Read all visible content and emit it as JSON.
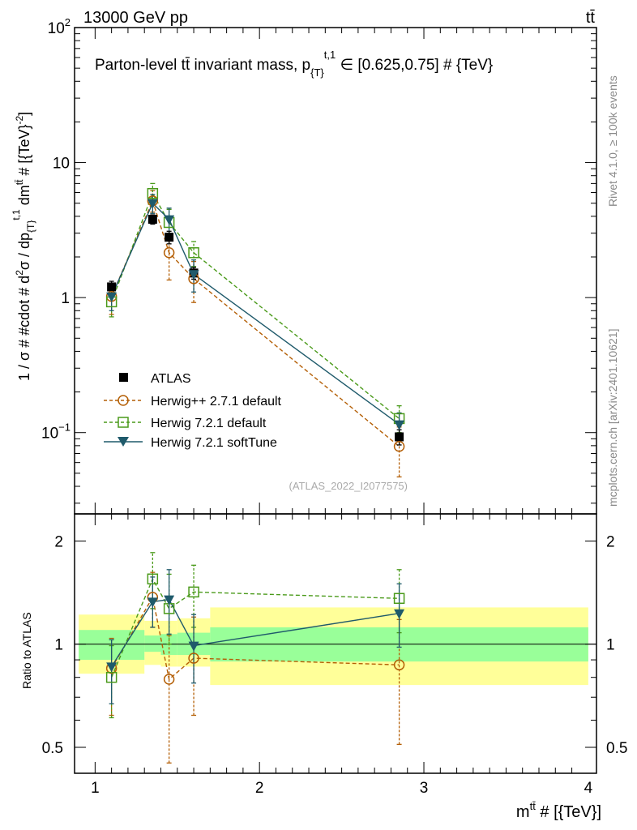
{
  "header": {
    "energy_label": "13000 GeV pp",
    "process_label": "tt̄"
  },
  "side_text": {
    "rivet": "Rivet 4.1.0, ≥ 100k events",
    "mcplots": "mcplots.cern.ch [arXiv:2401.10621]"
  },
  "chart_data": [
    {
      "type": "line",
      "panel": "main",
      "title": "Parton-level tt̄ invariant mass, p_{T}^{t,1} ∈ [0.625,0.75] # {TeV}",
      "title_parts": {
        "pre": "Parton-level tt̄ invariant mass, p",
        "sub": "{T}",
        "sup": "t,1",
        "post": " ∈ [0.625,0.75] # {TeV}"
      },
      "ylabel": "1 / σ # #cdot # d²σ / dp_{T}^{t,1} dm^{tt̄} # [{TeV}⁻²]",
      "ylabel_parts": {
        "a": "1 / σ # #cdot # d",
        "b": "2",
        "c": "σ / dp",
        "d": "{T}",
        "e": "t,1",
        "f": " dm",
        "g": "tt̄",
        "h": " # [{TeV}",
        "i": "-2",
        "j": "]"
      },
      "yscale": "log",
      "ylim": [
        0.025,
        100
      ],
      "xlim": [
        0.875,
        4.05
      ],
      "y_ticks": [
        {
          "value": 0.1,
          "base": "10",
          "exp": "−1"
        },
        {
          "value": 1,
          "base": "1",
          "exp": ""
        },
        {
          "value": 10,
          "base": "10",
          "exp": ""
        },
        {
          "value": 100,
          "base": "10",
          "exp": "2"
        }
      ],
      "watermark": "(ATLAS_2022_I2077575)",
      "legend_position": "lower-left",
      "series": [
        {
          "name": "ATLAS",
          "style": "data",
          "color": "#000000",
          "x": [
            1.1,
            1.35,
            1.45,
            1.6,
            2.85
          ],
          "y": [
            1.2,
            3.8,
            2.8,
            1.52,
            0.093
          ],
          "yerr": [
            0.12,
            0.3,
            0.3,
            0.15,
            0.012
          ]
        },
        {
          "name": "Herwig++ 2.7.1 default",
          "style": "circle",
          "color": "#b45f06",
          "x": [
            1.1,
            1.35,
            1.45,
            1.6,
            2.85
          ],
          "y": [
            1.02,
            5.2,
            2.15,
            1.38,
            0.079
          ],
          "ylo": [
            0.75,
            4.3,
            1.35,
            0.92,
            0.047
          ],
          "yhi": [
            1.25,
            6.2,
            3.0,
            1.85,
            0.11
          ]
        },
        {
          "name": "Herwig 7.2.1 default",
          "style": "square",
          "color": "#4a9a1a",
          "x": [
            1.1,
            1.35,
            1.45,
            1.6,
            2.85
          ],
          "y": [
            0.93,
            5.9,
            3.6,
            2.15,
            0.127
          ],
          "ylo": [
            0.72,
            4.9,
            2.8,
            1.7,
            0.1
          ],
          "yhi": [
            1.15,
            7.0,
            4.5,
            2.6,
            0.158
          ]
        },
        {
          "name": "Herwig 7.2.1 softTune",
          "style": "triangle",
          "color": "#1f5a6b",
          "x": [
            1.1,
            1.35,
            1.45,
            1.6,
            2.85
          ],
          "y": [
            1.02,
            5.0,
            3.8,
            1.49,
            0.115
          ],
          "ylo": [
            0.8,
            4.2,
            3.0,
            1.1,
            0.09
          ],
          "yhi": [
            1.25,
            5.8,
            4.6,
            1.9,
            0.14
          ]
        }
      ]
    },
    {
      "type": "line",
      "panel": "ratio",
      "ylabel": "Ratio to ATLAS",
      "xlabel": "m^{tt̄} # [{TeV}]",
      "xlabel_parts": {
        "a": "m",
        "b": "tt̄",
        "c": " # [{TeV}]"
      },
      "yscale": "log",
      "ylim": [
        0.42,
        2.4
      ],
      "xlim": [
        0.875,
        4.05
      ],
      "x_ticks": [
        1,
        2,
        3,
        4
      ],
      "x_tick_labels": [
        "1",
        "2",
        "3",
        "4"
      ],
      "y_ticks": [
        0.5,
        1,
        2
      ],
      "y_tick_labels": [
        "0.5",
        "1",
        "2"
      ],
      "bands": [
        {
          "x0": 0.9,
          "x1": 1.3,
          "stat_lo": 0.9,
          "stat_hi": 1.1,
          "tot_lo": 0.82,
          "tot_hi": 1.22
        },
        {
          "x0": 1.3,
          "x1": 1.4,
          "stat_lo": 0.95,
          "stat_hi": 1.06,
          "tot_lo": 0.87,
          "tot_hi": 1.17
        },
        {
          "x0": 1.4,
          "x1": 1.5,
          "stat_lo": 0.93,
          "stat_hi": 1.07,
          "tot_lo": 0.86,
          "tot_hi": 1.17
        },
        {
          "x0": 1.5,
          "x1": 1.7,
          "stat_lo": 0.93,
          "stat_hi": 1.08,
          "tot_lo": 0.86,
          "tot_hi": 1.19
        },
        {
          "x0": 1.7,
          "x1": 4.0,
          "stat_lo": 0.89,
          "stat_hi": 1.12,
          "tot_lo": 0.76,
          "tot_hi": 1.28
        }
      ],
      "series": [
        {
          "name": "Herwig++ 2.7.1 default",
          "style": "circle",
          "color": "#b45f06",
          "x": [
            1.1,
            1.35,
            1.45,
            1.6,
            2.85
          ],
          "y": [
            0.85,
            1.37,
            0.79,
            0.91,
            0.87
          ],
          "ylo": [
            0.62,
            1.12,
            0.45,
            0.62,
            0.51
          ],
          "yhi": [
            1.04,
            1.62,
            1.06,
            1.2,
            1.18
          ]
        },
        {
          "name": "Herwig 7.2.1 default",
          "style": "square",
          "color": "#4a9a1a",
          "x": [
            1.1,
            1.35,
            1.45,
            1.6,
            2.85
          ],
          "y": [
            0.8,
            1.55,
            1.27,
            1.42,
            1.36
          ],
          "ylo": [
            0.61,
            1.27,
            1.0,
            1.12,
            1.08
          ],
          "yhi": [
            0.99,
            1.85,
            1.6,
            1.7,
            1.65
          ]
        },
        {
          "name": "Herwig 7.2.1 softTune",
          "style": "triangle",
          "color": "#1f5a6b",
          "x": [
            1.1,
            1.35,
            1.45,
            1.6,
            2.85
          ],
          "y": [
            0.86,
            1.33,
            1.35,
            0.99,
            1.23
          ],
          "ylo": [
            0.67,
            1.12,
            1.07,
            0.77,
            0.98
          ],
          "yhi": [
            1.03,
            1.57,
            1.65,
            1.22,
            1.5
          ]
        }
      ]
    }
  ]
}
